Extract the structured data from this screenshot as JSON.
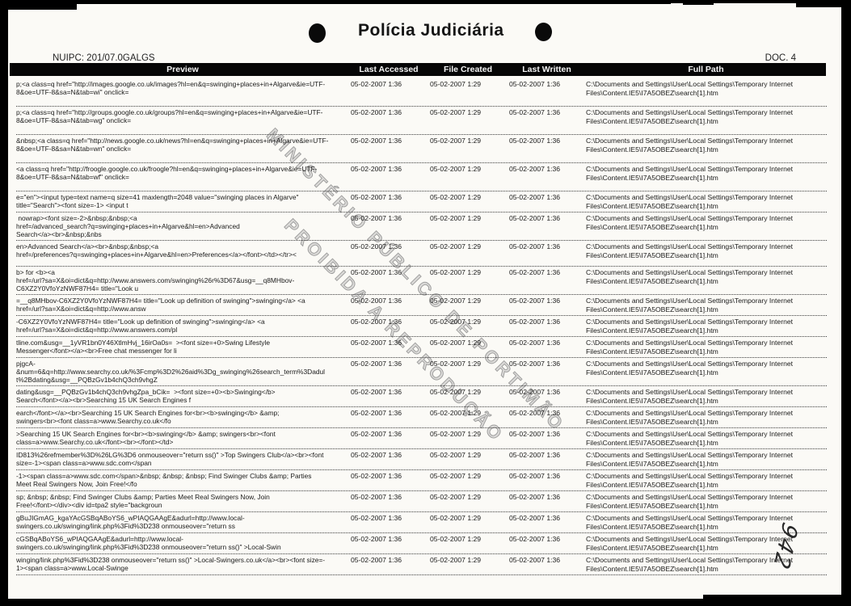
{
  "header": {
    "title": "Polícia Judiciária",
    "nuipc": "NUIPC: 201/07.0GALGS",
    "doc": "DOC. 4"
  },
  "watermark": {
    "line1": "MINISTÉRIO PÚBLICO DE PORTIMÃO",
    "line2": "PROIBIDA A REPRODUÇÃO"
  },
  "handwritten_page_number": "942",
  "colors": {
    "page_background": "#fbfaf6",
    "scan_border": "#000000",
    "header_bar": "#060606",
    "body_text": "#1b1b1b",
    "watermark_gray": "#969696"
  },
  "table": {
    "columns": [
      "Preview",
      "Last Accessed",
      "File Created",
      "Last Written",
      "Full Path"
    ],
    "rows": [
      {
        "preview": "p;<a class=q href=\"http://images.google.co.uk/images?hl=en&q=swinging+places+in+Algarve&ie=UTF-\n8&oe=UTF-8&sa=N&tab=wi\" onclick=",
        "last_accessed": "05-02-2007 1:36",
        "file_created": "05-02-2007 1:29",
        "last_written": "05-02-2007 1:36",
        "full_path": "C:\\Documents and Settings\\User\\Local Settings\\Temporary Internet\nFiles\\Content.IE5\\I7A5OBEZ\\search[1].htm"
      },
      {
        "preview": "p;<a class=q href=\"http://groups.google.co.uk/groups?hl=en&q=swinging+places+in+Algarve&ie=UTF-\n8&oe=UTF-8&sa=N&tab=wg\" onclick=",
        "last_accessed": "05-02-2007 1:36",
        "file_created": "05-02-2007 1:29",
        "last_written": "05-02-2007 1:36",
        "full_path": "C:\\Documents and Settings\\User\\Local Settings\\Temporary Internet\nFiles\\Content.IE5\\I7A5OBEZ\\search[1].htm"
      },
      {
        "preview": "&nbsp;<a class=q href=\"http://news.google.co.uk/news?hl=en&q=swinging+places+in+Algarve&ie=UTF-\n8&oe=UTF-8&sa=N&tab=wn\" onclick=",
        "last_accessed": "05-02-2007 1:36",
        "file_created": "05-02-2007 1:29",
        "last_written": "05-02-2007 1:36",
        "full_path": "C:\\Documents and Settings\\User\\Local Settings\\Temporary Internet\nFiles\\Content.IE5\\I7A5OBEZ\\search[1].htm"
      },
      {
        "preview": "<a class=q href=\"http://froogle.google.co.uk/froogle?hl=en&q=swinging+places+in+Algarve&ie=UTF-\n8&oe=UTF-8&sa=N&tab=wf\" onclick=",
        "last_accessed": "05-02-2007 1:36",
        "file_created": "05-02-2007 1:29",
        "last_written": "05-02-2007 1:36",
        "full_path": "C:\\Documents and Settings\\User\\Local Settings\\Temporary Internet\nFiles\\Content.IE5\\I7A5OBEZ\\search[1].htm"
      },
      {
        "preview": "e=\"en\"><input type=text name=q size=41 maxlength=2048 value=\"swinging places in Algarve\"\ntitle=\"Search\"><font size=-1> <input t",
        "last_accessed": "05-02-2007 1:36",
        "file_created": "05-02-2007 1:29",
        "last_written": "05-02-2007 1:36",
        "full_path": "C:\\Documents and Settings\\User\\Local Settings\\Temporary Internet\nFiles\\Content.IE5\\I7A5OBEZ\\search[1].htm"
      },
      {
        "preview": " nowrap><font size=-2>&nbsp;&nbsp;<a\nhref=/advanced_search?q=swinging+places+in+Algarve&hl=en>Advanced\nSearch</a><br>&nbsp;&nbs",
        "last_accessed": "05-02-2007 1:36",
        "file_created": "05-02-2007 1:29",
        "last_written": "05-02-2007 1:36",
        "full_path": "C:\\Documents and Settings\\User\\Local Settings\\Temporary Internet\nFiles\\Content.IE5\\I7A5OBEZ\\search[1].htm"
      },
      {
        "preview": "en>Advanced Search</a><br>&nbsp;&nbsp;<a\nhref=/preferences?q=swinging+places+in+Algarve&hl=en>Preferences</a></font></td></tr><",
        "last_accessed": "05-02-2007 1:36",
        "file_created": "05-02-2007 1:29",
        "last_written": "05-02-2007 1:36",
        "full_path": "C:\\Documents and Settings\\User\\Local Settings\\Temporary Internet\nFiles\\Content.IE5\\I7A5OBEZ\\search[1].htm"
      },
      {
        "preview": "b> for <b><a\nhref=/url?sa=X&oi=dict&q=http://www.answers.com/swinging%26r%3D67&usg=__q8MHbov-\nC6XZ2Y0VfoYzNWF87H4= title=\"Look u",
        "last_accessed": "05-02-2007 1:36",
        "file_created": "05-02-2007 1:29",
        "last_written": "05-02-2007 1:36",
        "full_path": "C:\\Documents and Settings\\User\\Local Settings\\Temporary Internet\nFiles\\Content.IE5\\I7A5OBEZ\\search[1].htm"
      },
      {
        "preview": "=__q8MHbov-C6XZ2Y0VfoYzNWF87H4= title=\"Look up definition of swinging\">swinging</a> <a\nhref=/url?sa=X&oi=dict&q=http://www.answ",
        "last_accessed": "05-02-2007 1:36",
        "file_created": "05-02-2007 1:29",
        "last_written": "05-02-2007 1:36",
        "full_path": "C:\\Documents and Settings\\User\\Local Settings\\Temporary Internet\nFiles\\Content.IE5\\I7A5OBEZ\\search[1].htm"
      },
      {
        "preview": "-C6XZ2Y0VfoYzNWF87H4= title=\"Look up definition of swinging\">swinging</a> <a\nhref=/url?sa=X&oi=dict&q=http://www.answers.com/pl",
        "last_accessed": "05-02-2007 1:36",
        "file_created": "05-02-2007 1:29",
        "last_written": "05-02-2007 1:36",
        "full_path": "C:\\Documents and Settings\\User\\Local Settings\\Temporary Internet\nFiles\\Content.IE5\\I7A5OBEZ\\search[1].htm"
      },
      {
        "preview": "tline.com&usg=__1yVR1bn0Y46XtlmHvj_16irOa0s=  ><font size=+0>Swing Lifestyle\nMessenger</font></a><br>Free chat messenger for li",
        "last_accessed": "05-02-2007 1:36",
        "file_created": "05-02-2007 1:29",
        "last_written": "05-02-2007 1:36",
        "full_path": "C:\\Documents and Settings\\User\\Local Settings\\Temporary Internet\nFiles\\Content.IE5\\I7A5OBEZ\\search[1].htm"
      },
      {
        "preview": "pjgcA-\n&num=6&q=http://www.searchy.co.uk/%3Fcmp%3D2%26aid%3Dg_swinging%26search_term%3Dadul\nt%2Bdating&usg=__PQBzGv1b4chQ3ch9vhgZ",
        "last_accessed": "05-02-2007 1:36",
        "file_created": "05-02-2007 1:29",
        "last_written": "05-02-2007 1:36",
        "full_path": "C:\\Documents and Settings\\User\\Local Settings\\Temporary Internet\nFiles\\Content.IE5\\I7A5OBEZ\\search[1].htm"
      },
      {
        "preview": "dating&usg=__PQBzGv1b4chQ3ch9vhgZpa_bCik=  ><font size=+0><b>Swinging</b>\nSearch</font></a><br>Searching 15 UK Search Engines f",
        "last_accessed": "05-02-2007 1:36",
        "file_created": "05-02-2007 1:29",
        "last_written": "05-02-2007 1:36",
        "full_path": "C:\\Documents and Settings\\User\\Local Settings\\Temporary Internet\nFiles\\Content.IE5\\I7A5OBEZ\\search[1].htm"
      },
      {
        "preview": "earch</font></a><br>Searching 15 UK Search Engines for<br><b>swinging</b> &amp;\nswingers<br><font class=a>www.Searchy.co.uk</fo",
        "last_accessed": "05-02-2007 1:36",
        "file_created": "05-02-2007 1:29",
        "last_written": "05-02-2007 1:36",
        "full_path": "C:\\Documents and Settings\\User\\Local Settings\\Temporary Internet\nFiles\\Content.IE5\\I7A5OBEZ\\search[1].htm"
      },
      {
        "preview": ">Searching 15 UK Search Engines for<br><b>swinging</b> &amp; swingers<br><font\nclass=a>www.Searchy.co.uk</font><br></font></td>",
        "last_accessed": "05-02-2007 1:36",
        "file_created": "05-02-2007 1:29",
        "last_written": "05-02-2007 1:36",
        "full_path": "C:\\Documents and Settings\\User\\Local Settings\\Temporary Internet\nFiles\\Content.IE5\\I7A5OBEZ\\search[1].htm"
      },
      {
        "preview": "ID813%26refmember%3D%26LG%3D6 onmouseover=\"return ss()\" >Top Swingers Club</a><br><font\nsize=-1><span class=a>www.sdc.com</span",
        "last_accessed": "05-02-2007 1:36",
        "file_created": "05-02-2007 1:29",
        "last_written": "05-02-2007 1:36",
        "full_path": "C:\\Documents and Settings\\User\\Local Settings\\Temporary Internet\nFiles\\Content.IE5\\I7A5OBEZ\\search[1].htm"
      },
      {
        "preview": "-1><span class=a>www.sdc.com</span>&nbsp; &nbsp; &nbsp; Find Swinger Clubs &amp; Parties\nMeet Real Swingers Now, Join Free!</fo",
        "last_accessed": "05-02-2007 1:36",
        "file_created": "05-02-2007 1:29",
        "last_written": "05-02-2007 1:36",
        "full_path": "C:\\Documents and Settings\\User\\Local Settings\\Temporary Internet\nFiles\\Content.IE5\\I7A5OBEZ\\search[1].htm"
      },
      {
        "preview": "sp; &nbsp; &nbsp; Find Swinger Clubs &amp; Parties Meet Real Swingers Now, Join\nFree!</font></div><div id=tpa2 style=\"backgroun",
        "last_accessed": "05-02-2007 1:36",
        "file_created": "05-02-2007 1:29",
        "last_written": "05-02-2007 1:36",
        "full_path": "C:\\Documents and Settings\\User\\Local Settings\\Temporary Internet\nFiles\\Content.IE5\\I7A5OBEZ\\search[1].htm"
      },
      {
        "preview": "gBuJIGmAG_kgaYAcGSBqABoYS6_wPIAQGAAgE&adurl=http://www.local-\nswingers.co.uk/swinging/link.php%3Fid%3D238 onmouseover=\"return ss",
        "last_accessed": "05-02-2007 1:36",
        "file_created": "05-02-2007 1:29",
        "last_written": "05-02-2007 1:36",
        "full_path": "C:\\Documents and Settings\\User\\Local Settings\\Temporary Internet\nFiles\\Content.IE5\\I7A5OBEZ\\search[1].htm"
      },
      {
        "preview": "cGSBqABoYS6_wPIAQGAAgE&adurl=http://www.local-\nswingers.co.uk/swinging/link.php%3Fid%3D238 onmouseover=\"return ss()\" >Local-Swin",
        "last_accessed": "05-02-2007 1:36",
        "file_created": "05-02-2007 1:29",
        "last_written": "05-02-2007 1:36",
        "full_path": "C:\\Documents and Settings\\User\\Local Settings\\Temporary Internet\nFiles\\Content.IE5\\I7A5OBEZ\\search[1].htm"
      },
      {
        "preview": "winging/link.php%3Fid%3D238 onmouseover=\"return ss()\" >Local-Swingers.co.uk</a><br><font size=-\n1><span class=a>www.Local-Swinge",
        "last_accessed": "05-02-2007 1:36",
        "file_created": "05-02-2007 1:29",
        "last_written": "05-02-2007 1:36",
        "full_path": "C:\\Documents and Settings\\User\\Local Settings\\Temporary Internet\nFiles\\Content.IE5\\I7A5OBEZ\\search[1].htm"
      }
    ]
  }
}
